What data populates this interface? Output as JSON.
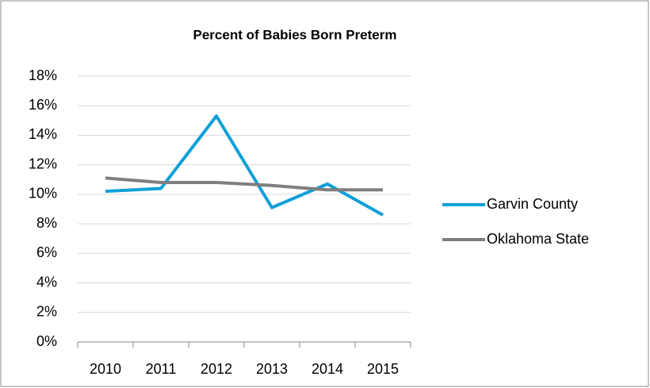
{
  "chart_data": {
    "type": "line",
    "title": "Percent of Babies Born Preterm",
    "categories": [
      "2010",
      "2011",
      "2012",
      "2013",
      "2014",
      "2015"
    ],
    "series": [
      {
        "name": "Garvin County",
        "color": "#0fa0d8",
        "values": [
          10.2,
          10.4,
          15.3,
          9.1,
          10.7,
          8.6
        ]
      },
      {
        "name": "Oklahoma State",
        "color": "#7f7f7f",
        "values": [
          11.1,
          10.8,
          10.8,
          10.6,
          10.3,
          10.3
        ]
      }
    ],
    "ylim": [
      0,
      18
    ],
    "yticks": [
      {
        "value": 0,
        "label": "0%"
      },
      {
        "value": 2,
        "label": "2%"
      },
      {
        "value": 4,
        "label": "4%"
      },
      {
        "value": 6,
        "label": "6%"
      },
      {
        "value": 8,
        "label": "8%"
      },
      {
        "value": 10,
        "label": "10%"
      },
      {
        "value": 12,
        "label": "12%"
      },
      {
        "value": 14,
        "label": "14%"
      },
      {
        "value": 16,
        "label": "16%"
      },
      {
        "value": 18,
        "label": "18%"
      }
    ],
    "grid": true,
    "legend": "right"
  }
}
